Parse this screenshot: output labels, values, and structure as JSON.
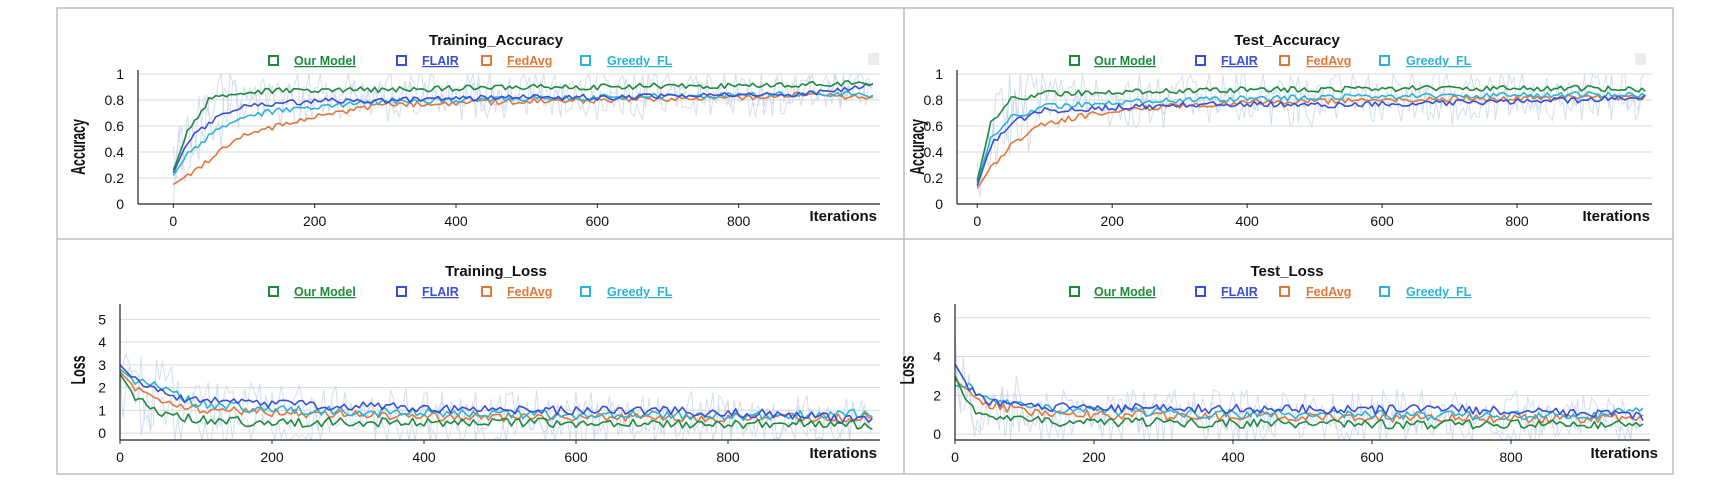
{
  "colors": {
    "our_model": "#1e8a3c",
    "flair": "#3a4fd6",
    "fedavg": "#e0783a",
    "greedy_fl": "#2bb3d6",
    "grid": "#d9d9d9",
    "noise": "#c6d3ea"
  },
  "chart_data": [
    {
      "type": "line",
      "id": "training_accuracy",
      "title": "Training_Accuracy",
      "xlabel": "Iterations",
      "ylabel": "Accuracy",
      "xlim": [
        -50,
        1000
      ],
      "ylim": [
        0,
        1
      ],
      "xticks": [
        0,
        200,
        400,
        600,
        800
      ],
      "yticks": [
        0,
        0.2,
        0.4,
        0.6,
        0.8,
        1
      ],
      "ytick_labels": [
        "0",
        "0.2",
        "0.4",
        "0.6",
        "0.8",
        "1"
      ],
      "legend": [
        "Our Model",
        "FLAIR",
        "FedAvg",
        "Greedy_FL"
      ],
      "series": [
        {
          "name": "Our Model",
          "x": [
            0,
            20,
            50,
            100,
            200,
            300,
            400,
            500,
            600,
            700,
            800,
            900,
            990
          ],
          "y": [
            0.26,
            0.55,
            0.8,
            0.86,
            0.88,
            0.88,
            0.89,
            0.9,
            0.9,
            0.91,
            0.91,
            0.92,
            0.93
          ]
        },
        {
          "name": "FLAIR",
          "x": [
            0,
            20,
            50,
            100,
            200,
            300,
            400,
            500,
            600,
            700,
            800,
            900,
            990
          ],
          "y": [
            0.24,
            0.48,
            0.62,
            0.76,
            0.79,
            0.8,
            0.81,
            0.82,
            0.82,
            0.83,
            0.84,
            0.85,
            0.92
          ]
        },
        {
          "name": "FedAvg",
          "x": [
            0,
            20,
            50,
            100,
            200,
            300,
            400,
            500,
            600,
            700,
            800,
            900,
            990
          ],
          "y": [
            0.15,
            0.22,
            0.34,
            0.53,
            0.68,
            0.76,
            0.78,
            0.79,
            0.8,
            0.81,
            0.82,
            0.84,
            0.81
          ]
        },
        {
          "name": "Greedy_FL",
          "x": [
            0,
            20,
            50,
            100,
            200,
            300,
            400,
            500,
            600,
            700,
            800,
            900,
            990
          ],
          "y": [
            0.22,
            0.38,
            0.52,
            0.68,
            0.75,
            0.79,
            0.8,
            0.81,
            0.82,
            0.83,
            0.84,
            0.85,
            0.84
          ]
        }
      ]
    },
    {
      "type": "line",
      "id": "test_accuracy",
      "title": "Test_Accuracy",
      "xlabel": "Iterations",
      "ylabel": "Accuracy",
      "xlim": [
        -30,
        1000
      ],
      "ylim": [
        0,
        1
      ],
      "xticks": [
        0,
        200,
        400,
        600,
        800
      ],
      "yticks": [
        0,
        0.2,
        0.4,
        0.6,
        0.8,
        1
      ],
      "ytick_labels": [
        "0",
        "0.2",
        "0.4",
        "0.6",
        "0.8",
        "1"
      ],
      "legend": [
        "Our Model",
        "FLAIR",
        "FedAvg",
        "Greedy_FL"
      ],
      "series": [
        {
          "name": "Our Model",
          "x": [
            0,
            20,
            50,
            100,
            200,
            300,
            400,
            500,
            600,
            700,
            800,
            900,
            990
          ],
          "y": [
            0.18,
            0.62,
            0.8,
            0.85,
            0.86,
            0.87,
            0.88,
            0.88,
            0.89,
            0.89,
            0.89,
            0.89,
            0.88
          ]
        },
        {
          "name": "FLAIR",
          "x": [
            0,
            20,
            50,
            100,
            200,
            300,
            400,
            500,
            600,
            700,
            800,
            900,
            990
          ],
          "y": [
            0.14,
            0.45,
            0.62,
            0.72,
            0.74,
            0.76,
            0.77,
            0.76,
            0.77,
            0.78,
            0.79,
            0.8,
            0.82
          ]
        },
        {
          "name": "FedAvg",
          "x": [
            0,
            20,
            50,
            100,
            200,
            300,
            400,
            500,
            600,
            700,
            800,
            900,
            990
          ],
          "y": [
            0.12,
            0.28,
            0.45,
            0.62,
            0.72,
            0.76,
            0.78,
            0.79,
            0.8,
            0.81,
            0.81,
            0.82,
            0.82
          ]
        },
        {
          "name": "Greedy_FL",
          "x": [
            0,
            20,
            50,
            100,
            200,
            300,
            400,
            500,
            600,
            700,
            800,
            900,
            990
          ],
          "y": [
            0.16,
            0.5,
            0.66,
            0.75,
            0.78,
            0.8,
            0.81,
            0.82,
            0.83,
            0.83,
            0.84,
            0.84,
            0.84
          ]
        }
      ]
    },
    {
      "type": "line",
      "id": "training_loss",
      "title": "Training_Loss",
      "xlabel": "Iterations",
      "ylabel": "Loss",
      "xlim": [
        0,
        1000
      ],
      "ylim": [
        -0.3,
        5.5
      ],
      "xticks": [
        0,
        200,
        400,
        600,
        800
      ],
      "yticks": [
        0,
        1,
        2,
        3,
        4,
        5
      ],
      "ytick_labels": [
        "0",
        "1",
        "2",
        "3",
        "4",
        "5"
      ],
      "legend": [
        "Our Model",
        "FLAIR",
        "FedAvg",
        "Greedy_FL"
      ],
      "series": [
        {
          "name": "Our Model",
          "x": [
            0,
            20,
            50,
            100,
            200,
            300,
            400,
            500,
            600,
            700,
            800,
            900,
            990
          ],
          "y": [
            2.6,
            1.6,
            0.9,
            0.6,
            0.45,
            0.5,
            0.45,
            0.5,
            0.45,
            0.4,
            0.4,
            0.45,
            0.35
          ]
        },
        {
          "name": "FLAIR",
          "x": [
            0,
            20,
            50,
            100,
            200,
            300,
            400,
            500,
            600,
            700,
            800,
            900,
            990
          ],
          "y": [
            3.0,
            2.3,
            1.8,
            1.4,
            1.3,
            1.2,
            1.1,
            1.0,
            1.0,
            1.0,
            0.9,
            0.8,
            0.5
          ]
        },
        {
          "name": "FedAvg",
          "x": [
            0,
            20,
            50,
            100,
            200,
            300,
            400,
            500,
            600,
            700,
            800,
            900,
            990
          ],
          "y": [
            2.7,
            2.0,
            1.5,
            1.1,
            0.9,
            0.8,
            0.75,
            0.7,
            0.7,
            0.7,
            0.65,
            0.7,
            0.7
          ]
        },
        {
          "name": "Greedy_FL",
          "x": [
            0,
            20,
            50,
            100,
            200,
            300,
            400,
            500,
            600,
            700,
            800,
            900,
            990
          ],
          "y": [
            2.8,
            2.3,
            2.1,
            1.3,
            1.05,
            0.95,
            0.9,
            0.85,
            0.8,
            0.8,
            0.75,
            0.8,
            0.9
          ]
        }
      ]
    },
    {
      "type": "line",
      "id": "test_loss",
      "title": "Test_Loss",
      "xlabel": "Iterations",
      "ylabel": "Loss",
      "xlim": [
        0,
        1000
      ],
      "ylim": [
        -0.3,
        6.5
      ],
      "xticks": [
        0,
        200,
        400,
        600,
        800
      ],
      "yticks": [
        0,
        2,
        4,
        6
      ],
      "ytick_labels": [
        "0",
        "2",
        "4",
        "6"
      ],
      "legend": [
        "Our Model",
        "FLAIR",
        "FedAvg",
        "Greedy_FL"
      ],
      "series": [
        {
          "name": "Our Model",
          "x": [
            0,
            20,
            50,
            100,
            200,
            300,
            400,
            500,
            600,
            700,
            800,
            900,
            990
          ],
          "y": [
            3.0,
            1.4,
            0.9,
            0.7,
            0.6,
            0.6,
            0.55,
            0.55,
            0.5,
            0.5,
            0.5,
            0.5,
            0.6
          ]
        },
        {
          "name": "FLAIR",
          "x": [
            0,
            20,
            50,
            100,
            200,
            300,
            400,
            500,
            600,
            700,
            800,
            900,
            990
          ],
          "y": [
            3.6,
            2.4,
            1.6,
            1.4,
            1.4,
            1.3,
            1.3,
            1.3,
            1.25,
            1.3,
            1.2,
            1.1,
            0.9
          ]
        },
        {
          "name": "FedAvg",
          "x": [
            0,
            20,
            50,
            100,
            200,
            300,
            400,
            500,
            600,
            700,
            800,
            900,
            990
          ],
          "y": [
            2.8,
            2.2,
            1.5,
            1.2,
            1.0,
            0.95,
            0.9,
            0.9,
            0.85,
            0.85,
            0.8,
            0.8,
            0.9
          ]
        },
        {
          "name": "Greedy_FL",
          "x": [
            0,
            20,
            50,
            100,
            200,
            300,
            400,
            500,
            600,
            700,
            800,
            900,
            990
          ],
          "y": [
            2.5,
            2.4,
            1.8,
            1.4,
            1.2,
            1.1,
            1.05,
            1.0,
            1.0,
            0.95,
            0.95,
            0.9,
            1.4
          ]
        }
      ]
    }
  ]
}
